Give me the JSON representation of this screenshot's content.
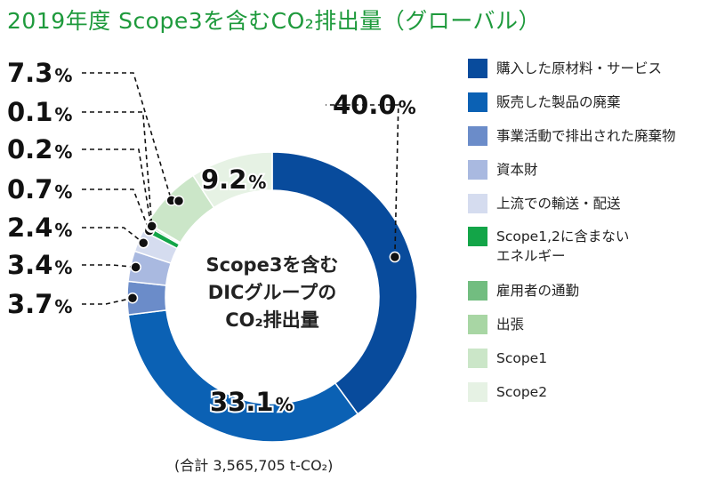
{
  "title": "2019年度 Scope3を含むCO₂排出量（グローバル）",
  "total_note": "(合計 3,565,705 t-CO₂)",
  "center_label": [
    "Scope3を含む",
    "DICグループの",
    "CO₂排出量"
  ],
  "chart_data": {
    "type": "pie",
    "variant": "donut",
    "unit": "%",
    "slices": [
      {
        "name": "購入した原材料・サービス",
        "value": 40.0,
        "label": "40.0",
        "color": "#084b9c"
      },
      {
        "name": "販売した製品の廃棄",
        "value": 33.1,
        "label": "33.1",
        "color": "#0b61b4"
      },
      {
        "name": "事業活動で排出された廃棄物",
        "value": 3.7,
        "label": "3.7",
        "color": "#6b8cc9"
      },
      {
        "name": "資本財",
        "value": 3.4,
        "label": "3.4",
        "color": "#a9b9e0"
      },
      {
        "name": "上流での輸送・配送",
        "value": 2.4,
        "label": "2.4",
        "color": "#d5dcef"
      },
      {
        "name": "Scope1,2に含まない\nエネルギー",
        "value": 0.7,
        "label": "0.7",
        "color": "#13a548"
      },
      {
        "name": "雇用者の通勤",
        "value": 0.2,
        "label": "0.2",
        "color": "#72bd80"
      },
      {
        "name": "出張",
        "value": 0.1,
        "label": "0.1",
        "color": "#a8d6a4"
      },
      {
        "name": "Scope1",
        "value": 7.3,
        "label": "7.3",
        "color": "#cbe6c8"
      },
      {
        "name": "Scope2",
        "value": 9.2,
        "label": "9.2",
        "color": "#e6f2e4"
      }
    ]
  }
}
